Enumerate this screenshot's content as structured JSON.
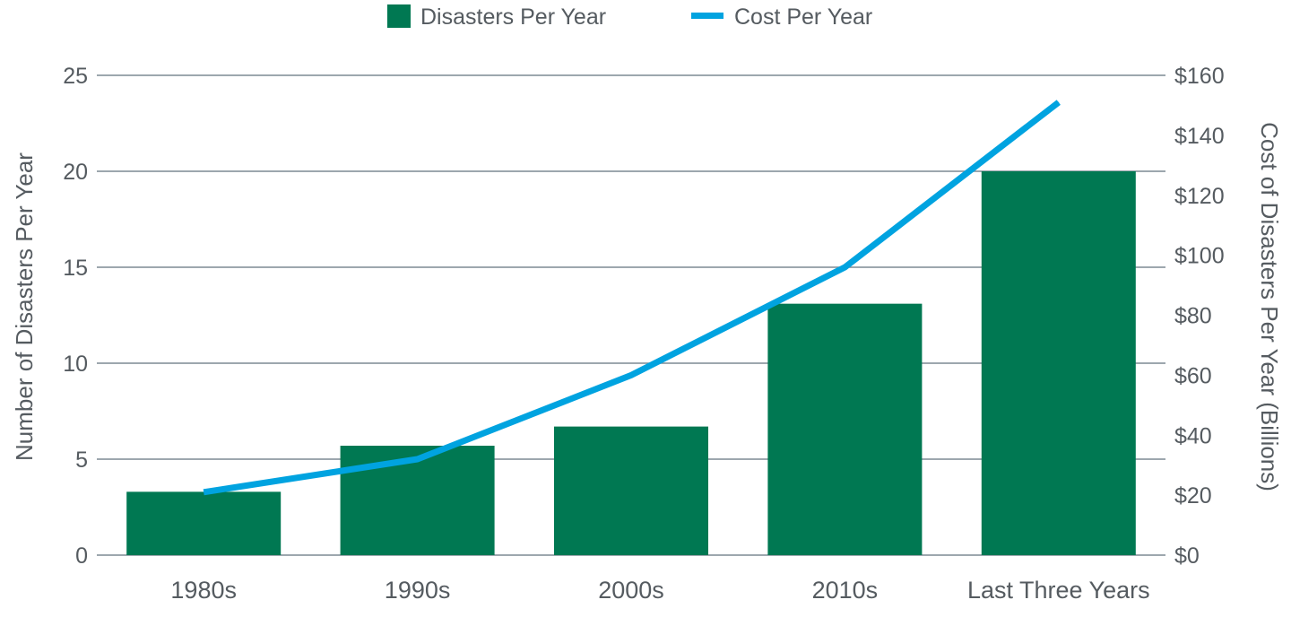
{
  "chart_data": {
    "type": "bar",
    "categories": [
      "1980s",
      "1990s",
      "2000s",
      "2010s",
      "Last Three Years"
    ],
    "series": [
      {
        "name": "Disasters Per Year",
        "kind": "bar",
        "axis": "left",
        "color": "#007852",
        "values": [
          3.3,
          5.7,
          6.7,
          13.1,
          20.0
        ]
      },
      {
        "name": "Cost Per Year",
        "kind": "line",
        "axis": "right",
        "color": "#00a3e0",
        "values": [
          21,
          32,
          60,
          96,
          151
        ]
      }
    ],
    "ylabel": "Number of Disasters Per Year",
    "ylabel_right": "Cost of Disasters Per Year (Billions)",
    "ylim": [
      0,
      25
    ],
    "ylim_right": [
      0,
      160
    ],
    "yticks": [
      "0",
      "5",
      "10",
      "15",
      "20",
      "25"
    ],
    "yticks_right": [
      "$0",
      "$20",
      "$40",
      "$60",
      "$80",
      "$100",
      "$120",
      "$140",
      "$160"
    ],
    "grid": true,
    "gridline_color": "#7d8a94",
    "legend_position": "top-center"
  }
}
